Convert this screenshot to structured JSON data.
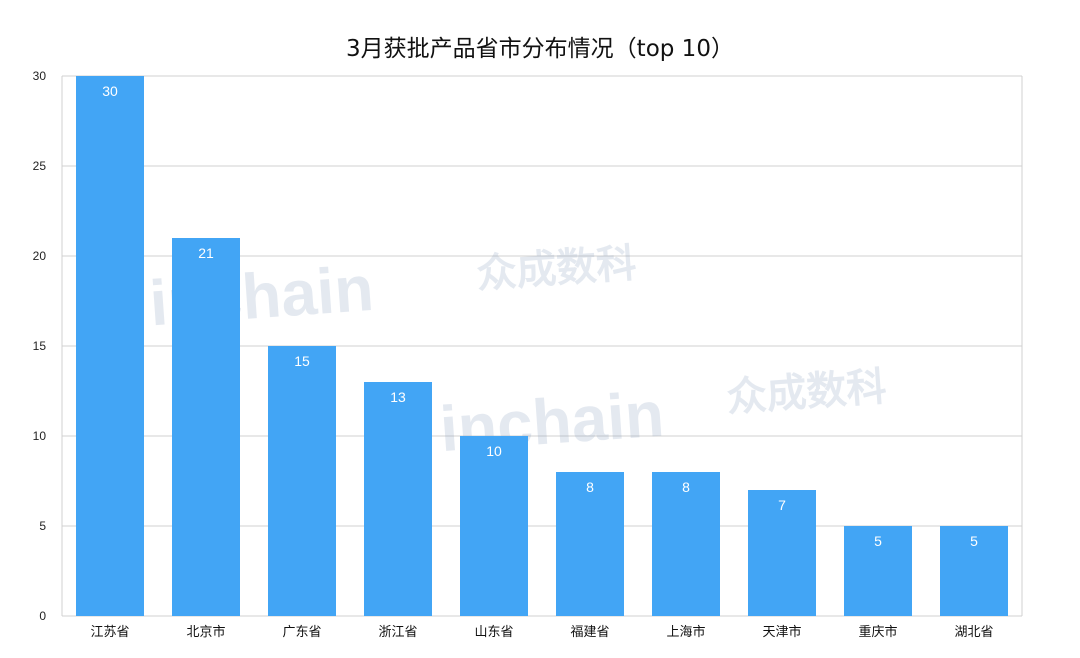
{
  "chart_data": {
    "type": "bar",
    "title": "3月获批产品省市分布情况（top 10）",
    "categories": [
      "江苏省",
      "北京市",
      "广东省",
      "浙江省",
      "山东省",
      "福建省",
      "上海市",
      "天津市",
      "重庆市",
      "湖北省"
    ],
    "values": [
      30,
      21,
      15,
      13,
      10,
      8,
      8,
      7,
      5,
      5
    ],
    "ylim": [
      0,
      30
    ],
    "yticks": [
      0,
      5,
      10,
      15,
      20,
      25,
      30
    ],
    "xlabel": "",
    "ylabel": "",
    "grid": true,
    "data_labels": true,
    "bar_color": "#42a5f5",
    "grid_color": "#d0d0d0"
  },
  "watermark": {
    "latin": "inchain",
    "chinese": "众成数科",
    "color": "#8a9fbe"
  }
}
